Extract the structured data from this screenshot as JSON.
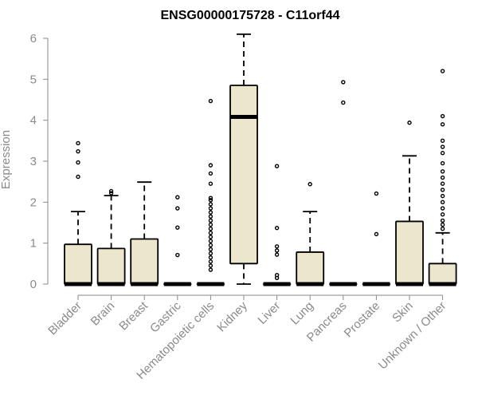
{
  "chart_data": {
    "type": "boxplot",
    "title": "ENSG00000175728 - C11orf44",
    "xlabel": "",
    "ylabel": "Expression",
    "ylim": [
      0,
      6.2
    ],
    "yticks": [
      0,
      1,
      2,
      3,
      4,
      5,
      6
    ],
    "grid": false,
    "box_fill": "#ece6cc",
    "box_stroke": "#000000",
    "axis_color": "#8a8a8a",
    "categories": [
      "Bladder",
      "Brain",
      "Breast",
      "Gastric",
      "Hematopoietic cells",
      "Kidney",
      "Liver",
      "Lung",
      "Pancreas",
      "Prostate",
      "Skin",
      "Unknown / Other"
    ],
    "boxes": [
      {
        "category": "Bladder",
        "q1": 0,
        "median": 0,
        "q3": 0.97,
        "whisker_low": 0,
        "whisker_high": 1.77,
        "outliers": [
          2.62,
          2.97,
          3.24,
          3.44
        ]
      },
      {
        "category": "Brain",
        "q1": 0,
        "median": 0,
        "q3": 0.87,
        "whisker_low": 0,
        "whisker_high": 2.16,
        "outliers": [
          2.22,
          2.27
        ]
      },
      {
        "category": "Breast",
        "q1": 0,
        "median": 0,
        "q3": 1.1,
        "whisker_low": 0,
        "whisker_high": 2.49,
        "outliers": []
      },
      {
        "category": "Gastric",
        "q1": 0,
        "median": 0,
        "q3": 0,
        "whisker_low": 0,
        "whisker_high": 0,
        "outliers": [
          0.71,
          1.38,
          1.85,
          2.12
        ]
      },
      {
        "category": "Hematopoietic cells",
        "q1": 0,
        "median": 0,
        "q3": 0,
        "whisker_low": 0,
        "whisker_high": 0,
        "outliers": [
          0.35,
          0.45,
          0.55,
          0.65,
          0.75,
          0.85,
          0.95,
          1.05,
          1.15,
          1.25,
          1.35,
          1.45,
          1.55,
          1.65,
          1.75,
          1.85,
          1.95,
          2.05,
          2.1,
          2.45,
          2.7,
          2.9,
          4.47
        ]
      },
      {
        "category": "Kidney",
        "q1": 0.5,
        "median": 4.08,
        "q3": 4.85,
        "whisker_low": 0,
        "whisker_high": 6.1,
        "outliers": []
      },
      {
        "category": "Liver",
        "q1": 0,
        "median": 0,
        "q3": 0,
        "whisker_low": 0,
        "whisker_high": 0,
        "outliers": [
          0.15,
          0.22,
          0.72,
          0.82,
          0.92,
          1.37,
          2.88
        ]
      },
      {
        "category": "Lung",
        "q1": 0,
        "median": 0,
        "q3": 0.78,
        "whisker_low": 0,
        "whisker_high": 1.77,
        "outliers": [
          2.44
        ]
      },
      {
        "category": "Pancreas",
        "q1": 0,
        "median": 0,
        "q3": 0,
        "whisker_low": 0,
        "whisker_high": 0,
        "outliers": [
          4.43,
          4.93
        ]
      },
      {
        "category": "Prostate",
        "q1": 0,
        "median": 0,
        "q3": 0,
        "whisker_low": 0,
        "whisker_high": 0,
        "outliers": [
          1.22,
          2.21
        ]
      },
      {
        "category": "Skin",
        "q1": 0,
        "median": 0,
        "q3": 1.53,
        "whisker_low": 0,
        "whisker_high": 3.13,
        "outliers": [
          3.94
        ]
      },
      {
        "category": "Unknown / Other",
        "q1": 0,
        "median": 0,
        "q3": 0.5,
        "whisker_low": 0,
        "whisker_high": 1.25,
        "outliers": [
          1.35,
          1.45,
          1.55,
          1.7,
          1.85,
          2.0,
          2.15,
          2.3,
          2.45,
          2.6,
          2.75,
          2.95,
          3.2,
          3.35,
          3.5,
          3.9,
          4.1,
          5.2
        ]
      }
    ]
  }
}
